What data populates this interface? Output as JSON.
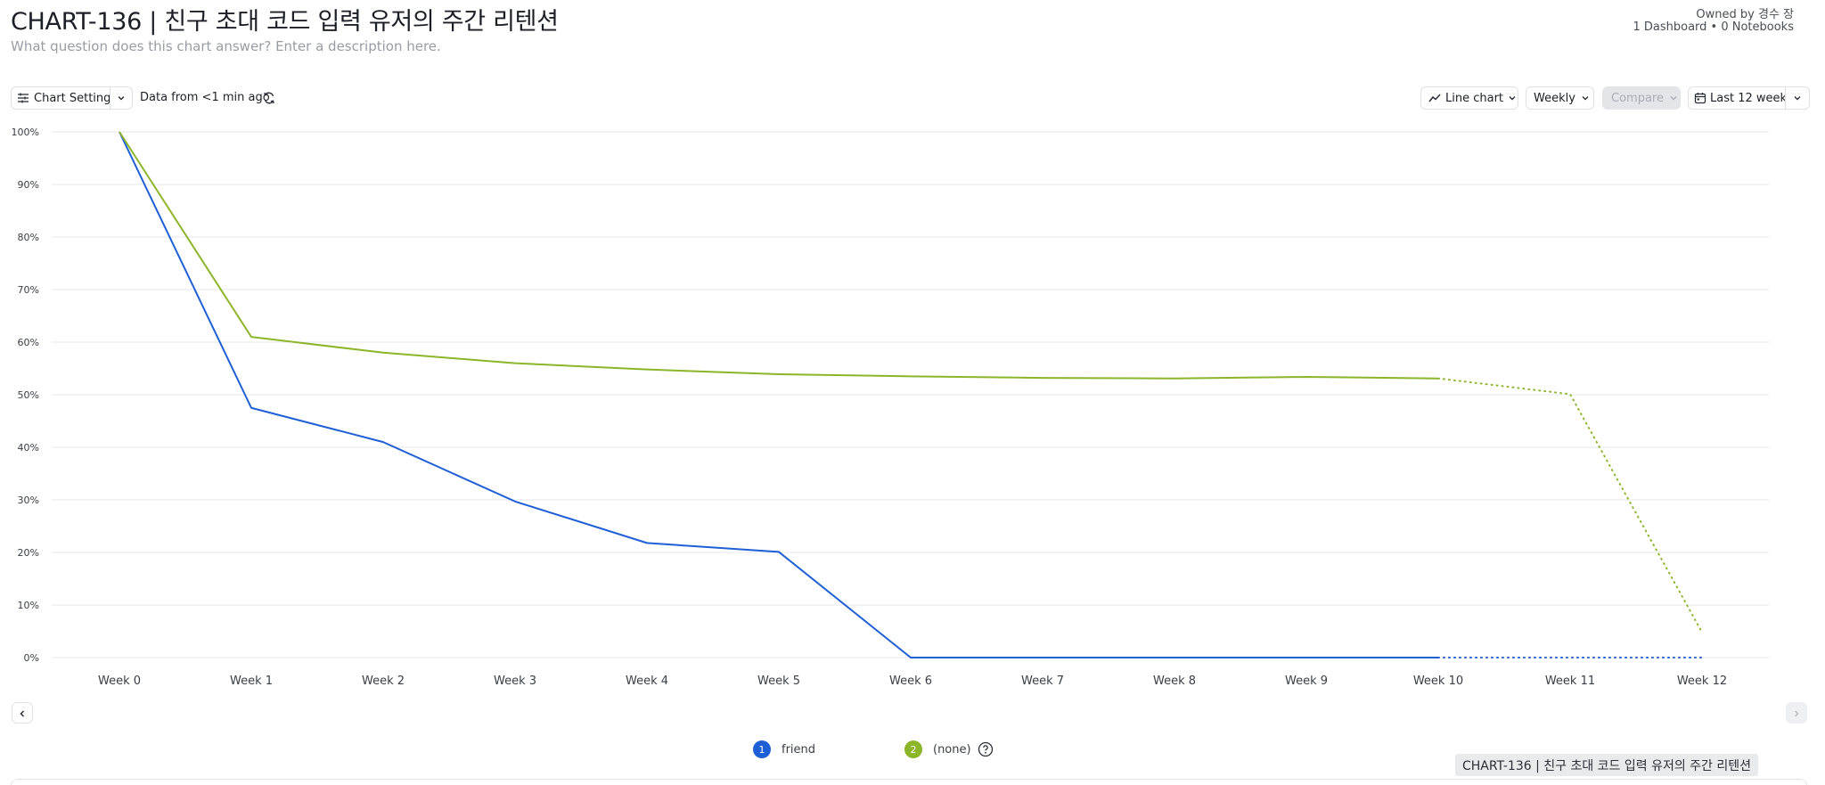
{
  "header": {
    "title": "CHART-136 | 친구 초대 코드 입력 유저의 주간 리텐션",
    "description_placeholder": "What question does this chart answer? Enter a description here.",
    "owner": "Owned by 경수 장",
    "meta": "1 Dashboard • 0 Notebooks"
  },
  "toolbar": {
    "chart_settings_label": "Chart Settings",
    "data_freshness": "Data from <1 min ago",
    "chart_type_label": "Line chart",
    "interval_label": "Weekly",
    "compare_label": "Compare",
    "date_range_label": "Last 12 weeks"
  },
  "chart_data": {
    "type": "line",
    "x": [
      "Week 0",
      "Week 1",
      "Week 2",
      "Week 3",
      "Week 4",
      "Week 5",
      "Week 6",
      "Week 7",
      "Week 8",
      "Week 9",
      "Week 10",
      "Week 11",
      "Week 12"
    ],
    "yticks": [
      "0%",
      "10%",
      "20%",
      "30%",
      "40%",
      "50%",
      "60%",
      "70%",
      "80%",
      "90%",
      "100%"
    ],
    "ylim": [
      0,
      100
    ],
    "grid": true,
    "incomplete_from_index": 10,
    "series": [
      {
        "name": "friend",
        "color": "#1f5fd6",
        "values": [
          100,
          47.5,
          41,
          29.7,
          21.8,
          20.1,
          0,
          0,
          0,
          0,
          0,
          0,
          0
        ]
      },
      {
        "name": "(none)",
        "color": "#8db52a",
        "values": [
          100,
          61,
          58,
          56,
          54.8,
          53.9,
          53.5,
          53.2,
          53.1,
          53.4,
          53.1,
          50.1,
          4.8
        ]
      }
    ]
  },
  "legend": {
    "items": [
      {
        "index": "1",
        "label": "friend",
        "color": "#1f5fd6"
      },
      {
        "index": "2",
        "label": "(none)",
        "color": "#8db52a"
      }
    ]
  },
  "footer_chip": "CHART-136 | 친구 초대 코드 입력 유저의 주간 리텐션"
}
